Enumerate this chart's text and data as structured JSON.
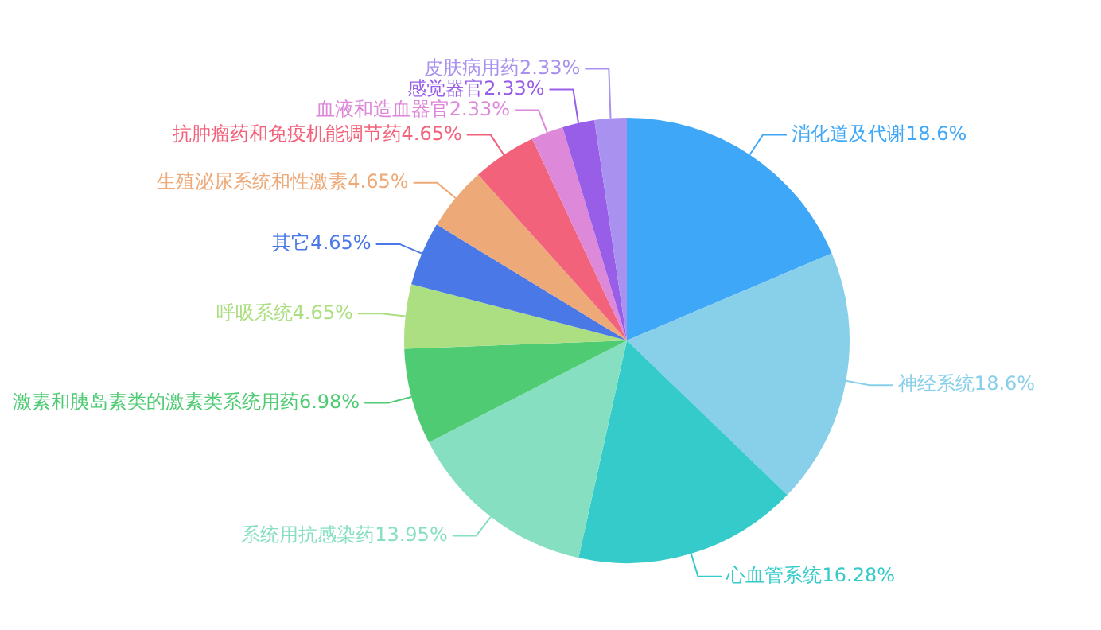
{
  "chart_data": {
    "type": "pie",
    "categories": [
      "消化道及代谢",
      "神经系统",
      "心血管系统",
      "系统用抗感染药",
      "激素和胰岛素类的激素类系统用药",
      "呼吸系统",
      "其它",
      "生殖泌尿系统和性激素",
      "抗肿瘤药和免疫机能调节药",
      "血液和造血器官",
      "感觉器官",
      "皮肤病用药"
    ],
    "values": [
      18.6,
      18.6,
      16.28,
      13.95,
      6.98,
      4.65,
      4.65,
      4.65,
      4.65,
      2.33,
      2.33,
      2.33
    ],
    "value_labels": [
      "18.6%",
      "18.6%",
      "16.28%",
      "13.95%",
      "6.98%",
      "4.65%",
      "4.65%",
      "4.65%",
      "4.65%",
      "2.33%",
      "2.33%",
      "2.33%"
    ],
    "colors": [
      "#3fa7f7",
      "#88cfea",
      "#36cbcb",
      "#86dfc1",
      "#4ecb73",
      "#acdf82",
      "#4a78e6",
      "#eda977",
      "#f2637b",
      "#dd88d8",
      "#985ee7",
      "#a891ef"
    ],
    "legend": false
  }
}
